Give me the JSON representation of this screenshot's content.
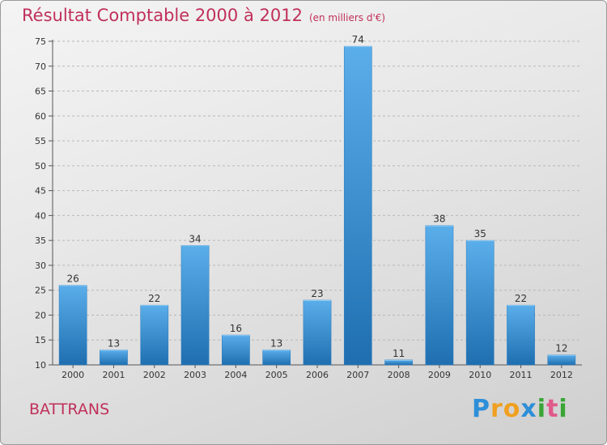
{
  "chart_data": {
    "type": "bar",
    "title": "Résultat Comptable 2000 à 2012",
    "subtitle": "(en milliers d'€)",
    "categories": [
      "2000",
      "2001",
      "2002",
      "2003",
      "2004",
      "2005",
      "2006",
      "2007",
      "2008",
      "2009",
      "2010",
      "2011",
      "2012"
    ],
    "values": [
      26,
      13,
      22,
      34,
      16,
      13,
      23,
      74,
      11,
      38,
      35,
      22,
      12
    ],
    "ylim": [
      10,
      75
    ],
    "yticks": [
      10,
      15,
      20,
      25,
      30,
      35,
      40,
      45,
      50,
      55,
      60,
      65,
      70,
      75
    ],
    "grid": true,
    "xlabel": "",
    "ylabel": ""
  },
  "commune": "BATTRANS",
  "brand": {
    "letters": [
      "P",
      "r",
      "o",
      "x",
      "i",
      "t",
      "i"
    ],
    "colors": [
      "#2d8fd8",
      "#f0a020",
      "#f0a020",
      "#2d8fd8",
      "#3aa535",
      "#e05a8a",
      "#3aa535"
    ]
  },
  "colors": {
    "bar_top": "#5aaeea",
    "bar_bottom": "#1f6fb0",
    "text_accent": "#c0305a"
  }
}
